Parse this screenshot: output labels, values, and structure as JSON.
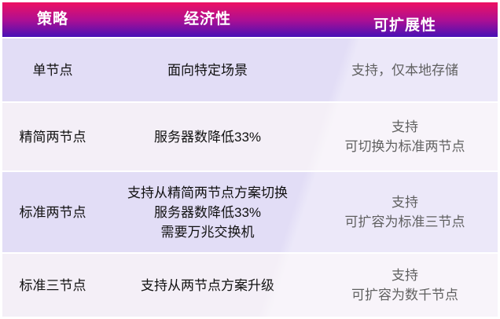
{
  "table": {
    "headers": [
      "策略",
      "经济性",
      "可扩展性"
    ],
    "rows": [
      {
        "strategy": "单节点",
        "economy": [
          "面向特定场景"
        ],
        "scalability": [
          "支持，仅本地存储"
        ]
      },
      {
        "strategy": "精简两节点",
        "economy": [
          "服务器数降低33%"
        ],
        "scalability": [
          "支持",
          "可切换为标准两节点"
        ]
      },
      {
        "strategy": "标准两节点",
        "economy": [
          "支持从精简两节点方案切换",
          "服务器数降低33%",
          "需要万兆交换机"
        ],
        "scalability": [
          "支持",
          "可扩容为标准三节点"
        ]
      },
      {
        "strategy": "标准三节点",
        "economy": [
          "支持从两节点方案升级"
        ],
        "scalability": [
          "支持",
          "可扩容为数千节点"
        ]
      }
    ]
  },
  "colors": {
    "header_gradient_top": "#ee1062",
    "header_gradient_mid": "#ac0f93",
    "header_gradient_bottom": "#4710b6",
    "header_text": "#ffffff",
    "row_odd": "#e2ddf6",
    "row_even": "#f4eff7",
    "text": "#111111"
  }
}
